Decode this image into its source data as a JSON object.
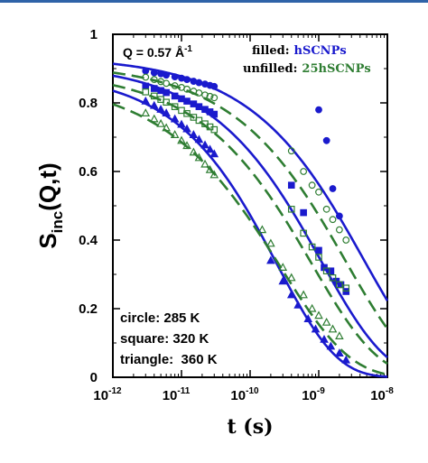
{
  "chart_data": {
    "type": "scatter",
    "title": "",
    "xlabel": "t (s)",
    "ylabel_main": "S",
    "ylabel_sub": "inc",
    "ylabel_tail": "(Q,t)",
    "xscale": "log",
    "xlim": [
      1e-12,
      1e-08
    ],
    "ylim": [
      0,
      1
    ],
    "x_tick_labels": [
      {
        "base": "10",
        "exp": "-12",
        "value": 1e-12
      },
      {
        "base": "10",
        "exp": "-11",
        "value": 1e-11
      },
      {
        "base": "10",
        "exp": "-10",
        "value": 1e-10
      },
      {
        "base": "10",
        "exp": "-9",
        "value": 1e-09
      },
      {
        "base": "10",
        "exp": "-8",
        "value": 1e-08
      }
    ],
    "y_tick_labels": [
      {
        "label": "0",
        "value": 0
      },
      {
        "label": "0.2",
        "value": 0.2
      },
      {
        "label": "0.4",
        "value": 0.4
      },
      {
        "label": "0.6",
        "value": 0.6
      },
      {
        "label": "0.8",
        "value": 0.8
      },
      {
        "label": "1",
        "value": 1
      }
    ],
    "annotation_q": {
      "text": "Q = 0.57 Å",
      "sup": "-1"
    },
    "legend": {
      "filled_prefix": "filled:",
      "filled_name": "hSCNPs",
      "unfilled_prefix": "unfilled:",
      "unfilled_name": "25hSCNPs",
      "placement": "top-right"
    },
    "temperature_notes": [
      "circle: 285 K",
      "square: 320 K",
      "triangle:  360 K"
    ],
    "colors": {
      "filled": "#1a1acd",
      "unfilled": "#2e7d32"
    },
    "series": [
      {
        "label": "filled circle 285 K",
        "marker": "circle",
        "filled": true,
        "x": [
          3e-12,
          4e-12,
          5e-12,
          6e-12,
          8e-12,
          1e-11,
          1.2e-11,
          1.5e-11,
          1.8e-11,
          2.2e-11,
          2.6e-11,
          3e-11,
          1e-09,
          1.3e-09,
          1.6e-09,
          2e-09
        ],
        "y": [
          0.893,
          0.888,
          0.885,
          0.881,
          0.876,
          0.872,
          0.868,
          0.863,
          0.859,
          0.855,
          0.851,
          0.848,
          0.78,
          0.69,
          0.55,
          0.47
        ]
      },
      {
        "label": "unfilled circle 285 K",
        "marker": "circle",
        "filled": false,
        "x": [
          3e-12,
          4e-12,
          5e-12,
          6e-12,
          8e-12,
          1e-11,
          1.2e-11,
          1.5e-11,
          1.8e-11,
          2.2e-11,
          2.6e-11,
          3e-11,
          4e-10,
          6e-10,
          8e-10,
          1e-09,
          1.3e-09,
          1.6e-09,
          2e-09,
          2.5e-09
        ],
        "y": [
          0.875,
          0.868,
          0.862,
          0.857,
          0.85,
          0.845,
          0.84,
          0.834,
          0.829,
          0.823,
          0.819,
          0.815,
          0.66,
          0.6,
          0.56,
          0.54,
          0.49,
          0.46,
          0.43,
          0.4
        ]
      },
      {
        "label": "filled square 320 K",
        "marker": "square",
        "filled": true,
        "x": [
          3e-12,
          4e-12,
          5e-12,
          6e-12,
          8e-12,
          1e-11,
          1.2e-11,
          1.5e-11,
          1.8e-11,
          2.2e-11,
          2.6e-11,
          3e-11,
          4e-10,
          6e-10,
          1e-09,
          1.2e-09,
          1.5e-09,
          1.8e-09,
          2.1e-09,
          2.5e-09
        ],
        "y": [
          0.849,
          0.842,
          0.836,
          0.83,
          0.82,
          0.812,
          0.805,
          0.797,
          0.789,
          0.781,
          0.774,
          0.767,
          0.56,
          0.48,
          0.37,
          0.32,
          0.31,
          0.28,
          0.27,
          0.25
        ]
      },
      {
        "label": "unfilled square 320 K",
        "marker": "square",
        "filled": false,
        "x": [
          3e-12,
          4e-12,
          5e-12,
          6e-12,
          8e-12,
          1e-11,
          1.2e-11,
          1.5e-11,
          1.8e-11,
          2.2e-11,
          2.6e-11,
          3e-11,
          4e-10,
          6e-10,
          8e-10,
          1e-09,
          1.3e-09,
          1.6e-09,
          2e-09,
          2.5e-09
        ],
        "y": [
          0.832,
          0.82,
          0.81,
          0.802,
          0.789,
          0.778,
          0.769,
          0.758,
          0.749,
          0.739,
          0.73,
          0.722,
          0.49,
          0.42,
          0.38,
          0.35,
          0.31,
          0.29,
          0.27,
          0.26
        ]
      },
      {
        "label": "filled triangle 360 K",
        "marker": "triangle",
        "filled": true,
        "x": [
          3e-12,
          4e-12,
          5e-12,
          6e-12,
          8e-12,
          1e-11,
          1.2e-11,
          1.5e-11,
          1.8e-11,
          2.2e-11,
          2.6e-11,
          3e-11,
          2e-10,
          3e-10,
          4e-10,
          5e-10,
          7e-10,
          9e-10,
          1.2e-09,
          1.5e-09,
          2e-09,
          2.5e-09
        ],
        "y": [
          0.805,
          0.792,
          0.781,
          0.77,
          0.753,
          0.737,
          0.724,
          0.707,
          0.693,
          0.677,
          0.664,
          0.651,
          0.34,
          0.28,
          0.24,
          0.21,
          0.17,
          0.14,
          0.11,
          0.09,
          0.07,
          0.05
        ]
      },
      {
        "label": "unfilled triangle 360 K",
        "marker": "triangle",
        "filled": false,
        "x": [
          3e-12,
          4e-12,
          5e-12,
          6e-12,
          8e-12,
          1e-11,
          1.2e-11,
          1.5e-11,
          1.8e-11,
          2.2e-11,
          2.6e-11,
          3e-11,
          1.5e-10,
          2e-10,
          3e-10,
          4e-10,
          6e-10,
          8e-10,
          1e-09,
          1.3e-09,
          1.6e-09,
          2e-09
        ],
        "y": [
          0.77,
          0.753,
          0.739,
          0.727,
          0.707,
          0.69,
          0.675,
          0.656,
          0.64,
          0.621,
          0.605,
          0.59,
          0.43,
          0.39,
          0.32,
          0.29,
          0.24,
          0.2,
          0.18,
          0.16,
          0.14,
          0.12
        ]
      }
    ],
    "fit_curves": [
      {
        "label": "filled fit 285 K",
        "style": "solid",
        "color": "#1a1acd",
        "tau": 4.5e-09,
        "beta": 0.45,
        "amplitude": 0.935
      },
      {
        "label": "unfilled fit 285 K",
        "style": "dashed",
        "color": "#2e7d32",
        "tau": 2.5e-09,
        "beta": 0.45,
        "amplitude": 0.915
      },
      {
        "label": "filled fit 320 K",
        "style": "solid",
        "color": "#1a1acd",
        "tau": 1.1e-09,
        "beta": 0.46,
        "amplitude": 0.915
      },
      {
        "label": "unfilled fit 320 K",
        "style": "dashed",
        "color": "#2e7d32",
        "tau": 8e-10,
        "beta": 0.45,
        "amplitude": 0.895
      },
      {
        "label": "filled fit 360 K",
        "style": "solid",
        "color": "#1a1acd",
        "tau": 2.5e-10,
        "beta": 0.5,
        "amplitude": 0.89
      },
      {
        "label": "unfilled fit 360 K",
        "style": "dashed",
        "color": "#2e7d32",
        "tau": 2.8e-10,
        "beta": 0.43,
        "amplitude": 0.87
      }
    ]
  }
}
